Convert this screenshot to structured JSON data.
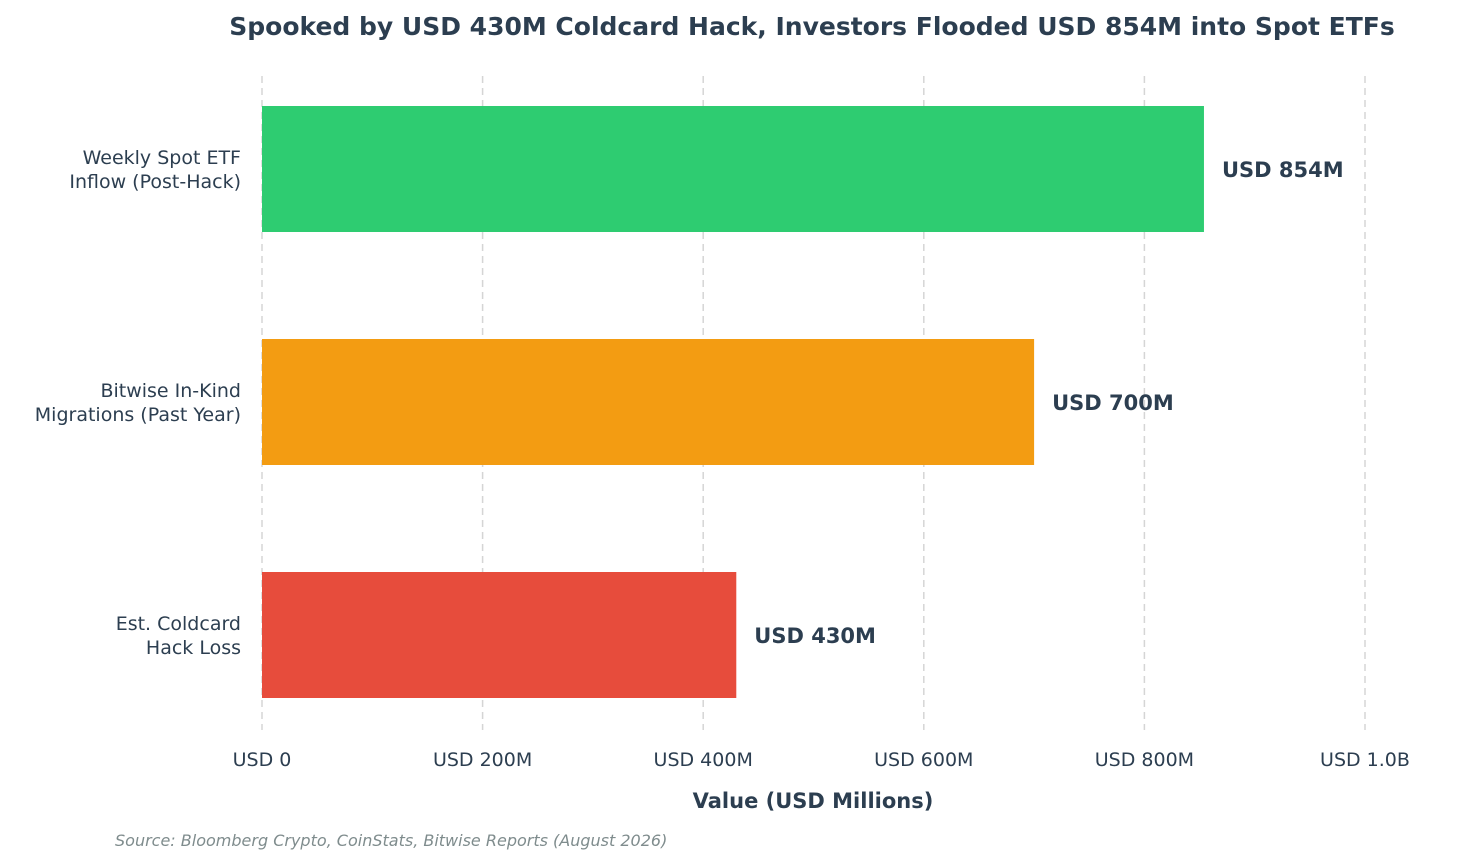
{
  "chart_data": {
    "type": "bar",
    "orientation": "horizontal",
    "title": "Spooked by USD 430M Coldcard Hack, Investors Flooded USD 854M into Spot ETFs",
    "xlabel": "Value (USD Millions)",
    "ylabel": "",
    "xlim": [
      0,
      1000
    ],
    "grid": "vertical dashed",
    "x_ticks": [
      {
        "value": 0,
        "label": "USD 0"
      },
      {
        "value": 200,
        "label": "USD 200M"
      },
      {
        "value": 400,
        "label": "USD 400M"
      },
      {
        "value": 600,
        "label": "USD 600M"
      },
      {
        "value": 800,
        "label": "USD 800M"
      },
      {
        "value": 1000,
        "label": "USD 1.0B"
      }
    ],
    "bars": [
      {
        "category_lines": [
          "Weekly Spot ETF",
          "Inflow (Post-Hack)"
        ],
        "value": 854,
        "label": "USD 854M",
        "color": "#2ecc71"
      },
      {
        "category_lines": [
          "Bitwise In-Kind",
          "Migrations (Past Year)"
        ],
        "value": 700,
        "label": "USD 700M",
        "color": "#f39c12"
      },
      {
        "category_lines": [
          "Est. Coldcard",
          "Hack Loss"
        ],
        "value": 430,
        "label": "USD 430M",
        "color": "#e74c3c"
      }
    ],
    "source": "Source: Bloomberg Crypto, CoinStats, Bitwise Reports (August 2026)"
  }
}
